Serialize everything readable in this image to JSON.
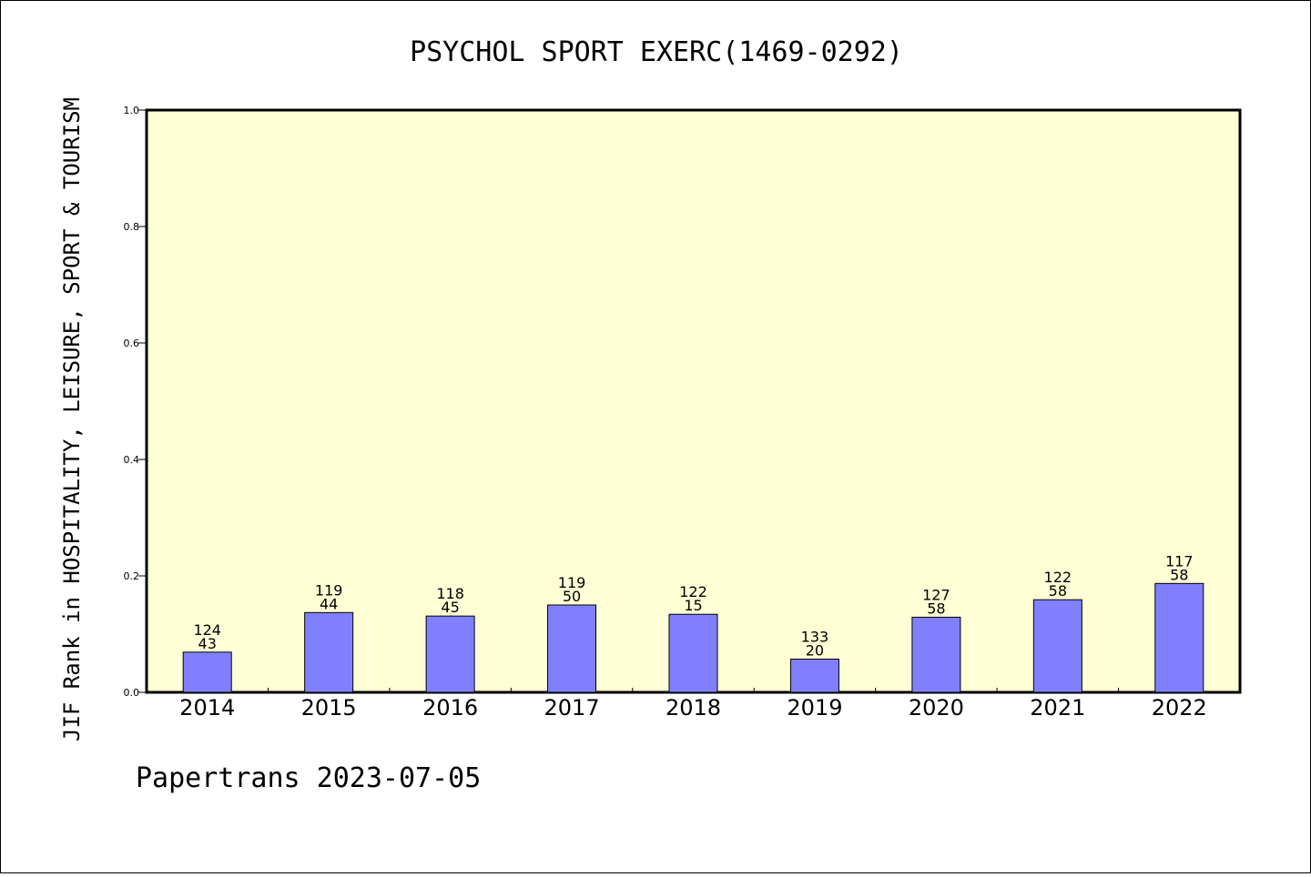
{
  "chart_data": {
    "type": "bar",
    "title": "PSYCHOL SPORT EXERC(1469-0292)",
    "ylabel": "JIF Rank in HOSPITALITY, LEISURE, SPORT & TOURISM",
    "xlabel": "",
    "ylim": [
      0,
      1.0
    ],
    "yticks": [
      "0.0",
      "0.2",
      "0.4",
      "0.6",
      "0.8",
      "1.0"
    ],
    "categories": [
      "2014",
      "2015",
      "2016",
      "2017",
      "2018",
      "2019",
      "2020",
      "2021",
      "2022"
    ],
    "values": [
      0.069,
      0.137,
      0.131,
      0.15,
      0.134,
      0.057,
      0.129,
      0.159,
      0.187
    ],
    "totals": [
      "124",
      "119",
      "118",
      "119",
      "122",
      "133",
      "127",
      "122",
      "117"
    ],
    "ranks": [
      "43",
      "44",
      "45",
      "50",
      "15",
      "20",
      "58",
      "58",
      "58"
    ],
    "grid": false,
    "colors": {
      "plot_background": "#ffffd5",
      "bar_fill": "#8080ff",
      "bar_stroke": "#000000"
    }
  },
  "footer": "Papertrans 2023-07-05"
}
